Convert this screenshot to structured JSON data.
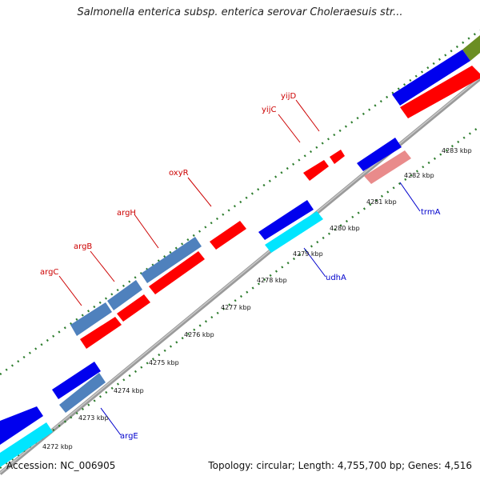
{
  "title": "Salmonella enterica subsp. enterica serovar Choleraesuis str...",
  "footer": {
    "accession": "Accession: NC_006905",
    "summary": "Topology: circular; Length: 4,755,700 bp; Genes: 4,516"
  },
  "colors": {
    "backbone": "#8c8c8c",
    "tick_dots": "#2e7d2e",
    "tick_major": "#1f6b1f",
    "gene_label_forward": "#cc0000",
    "gene_label_reverse": "#0000cc",
    "red_feature": "#ff0000",
    "blue_feature": "#0000ee",
    "steelblue_feature": "#4f81bd",
    "cyan_feature": "#00e5ff",
    "pink_feature": "#e98b8b",
    "olive_feature": "#6b8e23"
  },
  "ticks": [
    "4272 kbp",
    "4273 kbp",
    "4274 kbp",
    "4275 kbp",
    "4276 kbp",
    "4277 kbp",
    "4278 kbp",
    "4279 kbp",
    "4280 kbp",
    "4281 kbp",
    "4282 kbp",
    "4283 kbp"
  ],
  "gene_labels": [
    {
      "name": "argC",
      "strand": "forward"
    },
    {
      "name": "argB",
      "strand": "forward"
    },
    {
      "name": "argH",
      "strand": "forward"
    },
    {
      "name": "oxyR",
      "strand": "forward"
    },
    {
      "name": "yijC",
      "strand": "forward"
    },
    {
      "name": "yijD",
      "strand": "forward"
    },
    {
      "name": "argE",
      "strand": "reverse"
    },
    {
      "name": "udhA",
      "strand": "reverse"
    },
    {
      "name": "trmA",
      "strand": "reverse"
    }
  ]
}
